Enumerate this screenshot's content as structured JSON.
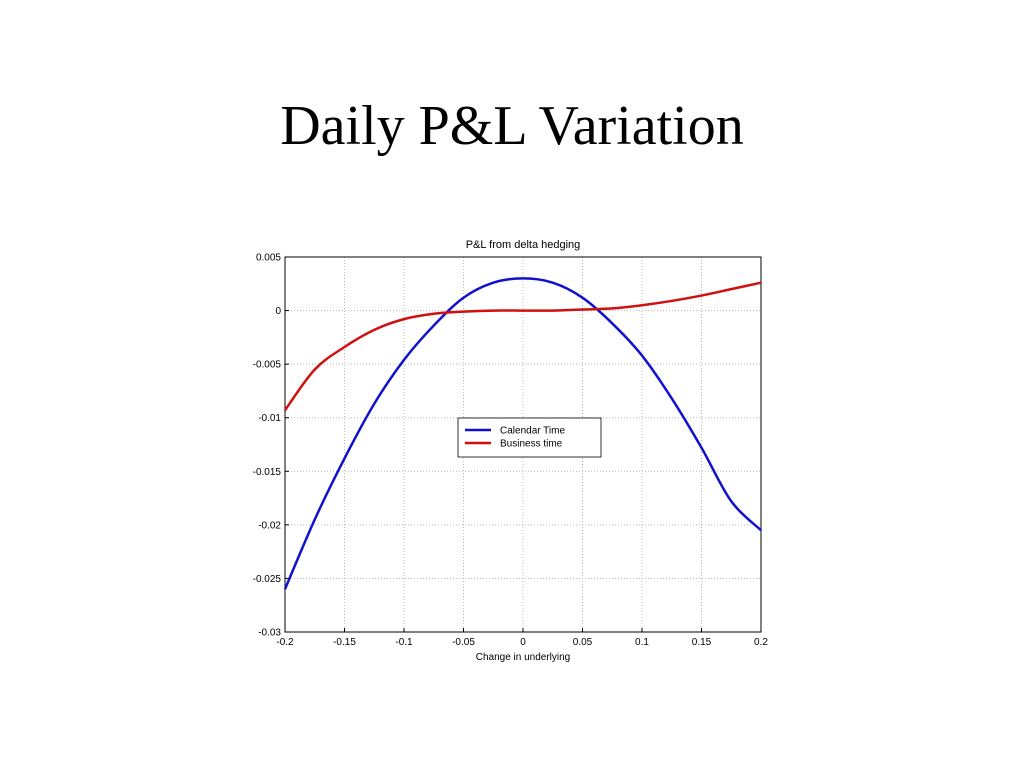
{
  "slide": {
    "title": "Daily P&L Variation"
  },
  "chart_data": {
    "type": "line",
    "title": "P&L from  delta hedging",
    "xlabel": "Change in underlying",
    "ylabel": "",
    "xlim": [
      -0.2,
      0.2
    ],
    "ylim": [
      -0.03,
      0.005
    ],
    "xticks": [
      -0.2,
      -0.15,
      -0.1,
      -0.05,
      0,
      0.05,
      0.1,
      0.15,
      0.2
    ],
    "xtick_labels": [
      "-0.2",
      "-0.15",
      "-0.1",
      "-0.05",
      "0",
      "0.05",
      "0.1",
      "0.15",
      "0.2"
    ],
    "yticks": [
      0.005,
      0,
      -0.005,
      -0.01,
      -0.015,
      -0.02,
      -0.025,
      -0.03
    ],
    "ytick_labels": [
      "0.005",
      "0",
      "-0.005",
      "-0.01",
      "-0.015",
      "-0.02",
      "-0.025",
      "-0.03"
    ],
    "grid": true,
    "legend_position": "center",
    "x": [
      -0.2,
      -0.175,
      -0.15,
      -0.125,
      -0.1,
      -0.075,
      -0.05,
      -0.025,
      0,
      0.025,
      0.05,
      0.075,
      0.1,
      0.125,
      0.15,
      0.175,
      0.2
    ],
    "series": [
      {
        "name": "Calendar Time",
        "color": "#1010d0",
        "values": [
          -0.026,
          -0.0195,
          -0.0138,
          -0.0087,
          -0.0046,
          -0.0014,
          0.0012,
          0.0026,
          0.003,
          0.0026,
          0.0012,
          -0.0012,
          -0.0042,
          -0.0082,
          -0.0128,
          -0.0178,
          -0.0205
        ]
      },
      {
        "name": "Business time",
        "color": "#d01010",
        "values": [
          -0.0093,
          -0.0055,
          -0.0034,
          -0.0018,
          -0.0008,
          -0.0003,
          -0.0001,
          0,
          0,
          0,
          0.0001,
          0.0002,
          0.0005,
          0.0009,
          0.0014,
          0.002,
          0.0026
        ]
      }
    ]
  }
}
